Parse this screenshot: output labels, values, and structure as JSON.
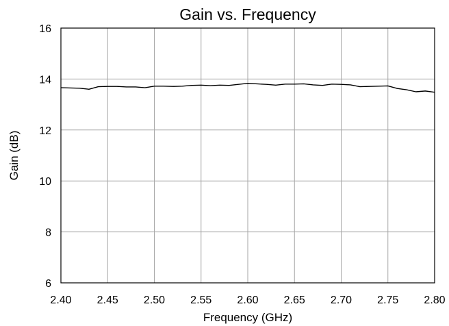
{
  "chart_data": {
    "type": "line",
    "title": "Gain vs. Frequency",
    "xlabel": "Frequency (GHz)",
    "ylabel": "Gain (dB)",
    "xlim": [
      2.4,
      2.8
    ],
    "ylim": [
      6,
      16
    ],
    "xticks": [
      2.4,
      2.45,
      2.5,
      2.55,
      2.6,
      2.65,
      2.7,
      2.75,
      2.8
    ],
    "xtick_labels": [
      "2.40",
      "2.45",
      "2.50",
      "2.55",
      "2.60",
      "2.65",
      "2.70",
      "2.75",
      "2.80"
    ],
    "yticks": [
      6,
      8,
      10,
      12,
      14,
      16
    ],
    "ytick_labels": [
      "6",
      "8",
      "10",
      "12",
      "14",
      "16"
    ],
    "grid": true,
    "legend": "none",
    "series": [
      {
        "color": "#000000",
        "x": [
          2.4,
          2.41,
          2.42,
          2.43,
          2.44,
          2.45,
          2.46,
          2.47,
          2.48,
          2.49,
          2.5,
          2.51,
          2.52,
          2.53,
          2.54,
          2.55,
          2.56,
          2.57,
          2.58,
          2.59,
          2.6,
          2.61,
          2.62,
          2.63,
          2.64,
          2.65,
          2.66,
          2.67,
          2.68,
          2.69,
          2.7,
          2.71,
          2.72,
          2.73,
          2.74,
          2.75,
          2.76,
          2.77,
          2.78,
          2.79,
          2.8
        ],
        "y": [
          13.66,
          13.65,
          13.64,
          13.6,
          13.7,
          13.71,
          13.71,
          13.69,
          13.69,
          13.66,
          13.72,
          13.72,
          13.71,
          13.72,
          13.75,
          13.76,
          13.74,
          13.76,
          13.75,
          13.79,
          13.83,
          13.81,
          13.79,
          13.76,
          13.8,
          13.8,
          13.81,
          13.77,
          13.75,
          13.8,
          13.79,
          13.77,
          13.7,
          13.71,
          13.72,
          13.73,
          13.63,
          13.58,
          13.5,
          13.53,
          13.48
        ]
      }
    ]
  }
}
